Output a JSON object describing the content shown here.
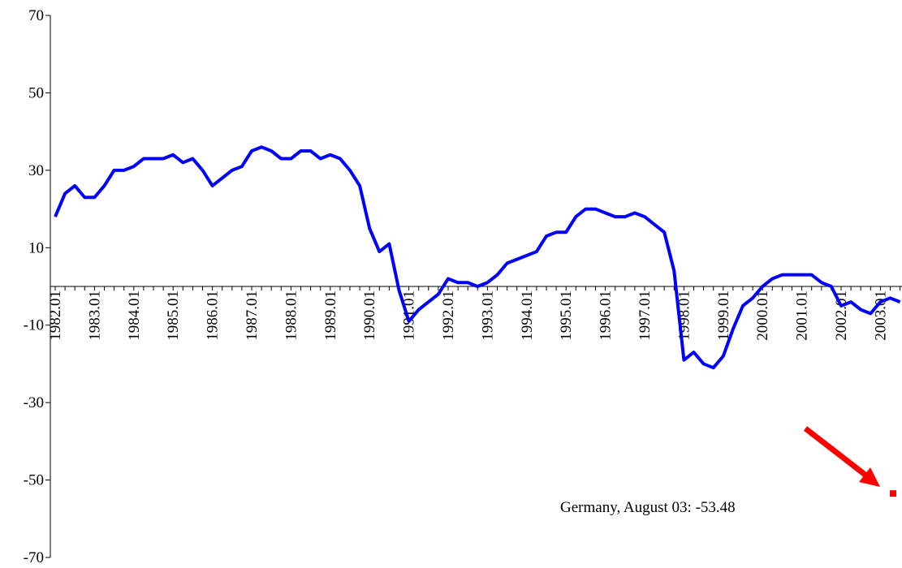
{
  "chart_data": {
    "type": "line",
    "categories": [
      "1982.01",
      null,
      null,
      null,
      "1983.01",
      null,
      null,
      null,
      "1984.01",
      null,
      null,
      null,
      "1985.01",
      null,
      null,
      null,
      "1986.01",
      null,
      null,
      null,
      "1987.01",
      null,
      null,
      null,
      "1988.01",
      null,
      null,
      null,
      "1989.01",
      null,
      null,
      null,
      "1990.01",
      null,
      null,
      null,
      "1991.01",
      null,
      null,
      null,
      "1992.01",
      null,
      null,
      null,
      "1993.01",
      null,
      null,
      null,
      "1994.01",
      null,
      null,
      null,
      "1995.01",
      null,
      null,
      null,
      "1996.01",
      null,
      null,
      null,
      "1997.01",
      null,
      null,
      null,
      "1998.01",
      null,
      null,
      null,
      "1999.01",
      null,
      null,
      null,
      "2000.01",
      null,
      null,
      null,
      "2001.01",
      null,
      null,
      null,
      "2002.01",
      null,
      null,
      null,
      "2003.01",
      null,
      null
    ],
    "series": [
      {
        "color": "#0000ff",
        "values": [
          18,
          24,
          26,
          23,
          23,
          26,
          30,
          30,
          31,
          33,
          33,
          33,
          34,
          32,
          33,
          30,
          26,
          28,
          30,
          31,
          35,
          36,
          35,
          33,
          33,
          35,
          35,
          33,
          34,
          33,
          30,
          26,
          15,
          9,
          11,
          -1,
          -9,
          -6,
          -4,
          -2,
          2,
          1,
          1,
          0,
          1,
          3,
          6,
          7,
          8,
          9,
          13,
          14,
          14,
          18,
          20,
          20,
          19,
          18,
          18,
          19,
          18,
          16,
          14,
          4,
          -19,
          -17,
          -20,
          -21,
          -18,
          -11,
          -5,
          -3,
          0,
          2,
          3,
          3,
          3,
          3,
          1,
          0,
          -5,
          -4,
          -6,
          -7,
          -4,
          -3,
          -4
        ]
      }
    ],
    "ylim": [
      -70,
      70
    ],
    "yticks": [
      -70,
      -50,
      -30,
      -10,
      10,
      30,
      50,
      70
    ],
    "annotation": {
      "text": "Germany, August 03: -53.48",
      "value": -53.48,
      "color": "#ff0000"
    }
  }
}
